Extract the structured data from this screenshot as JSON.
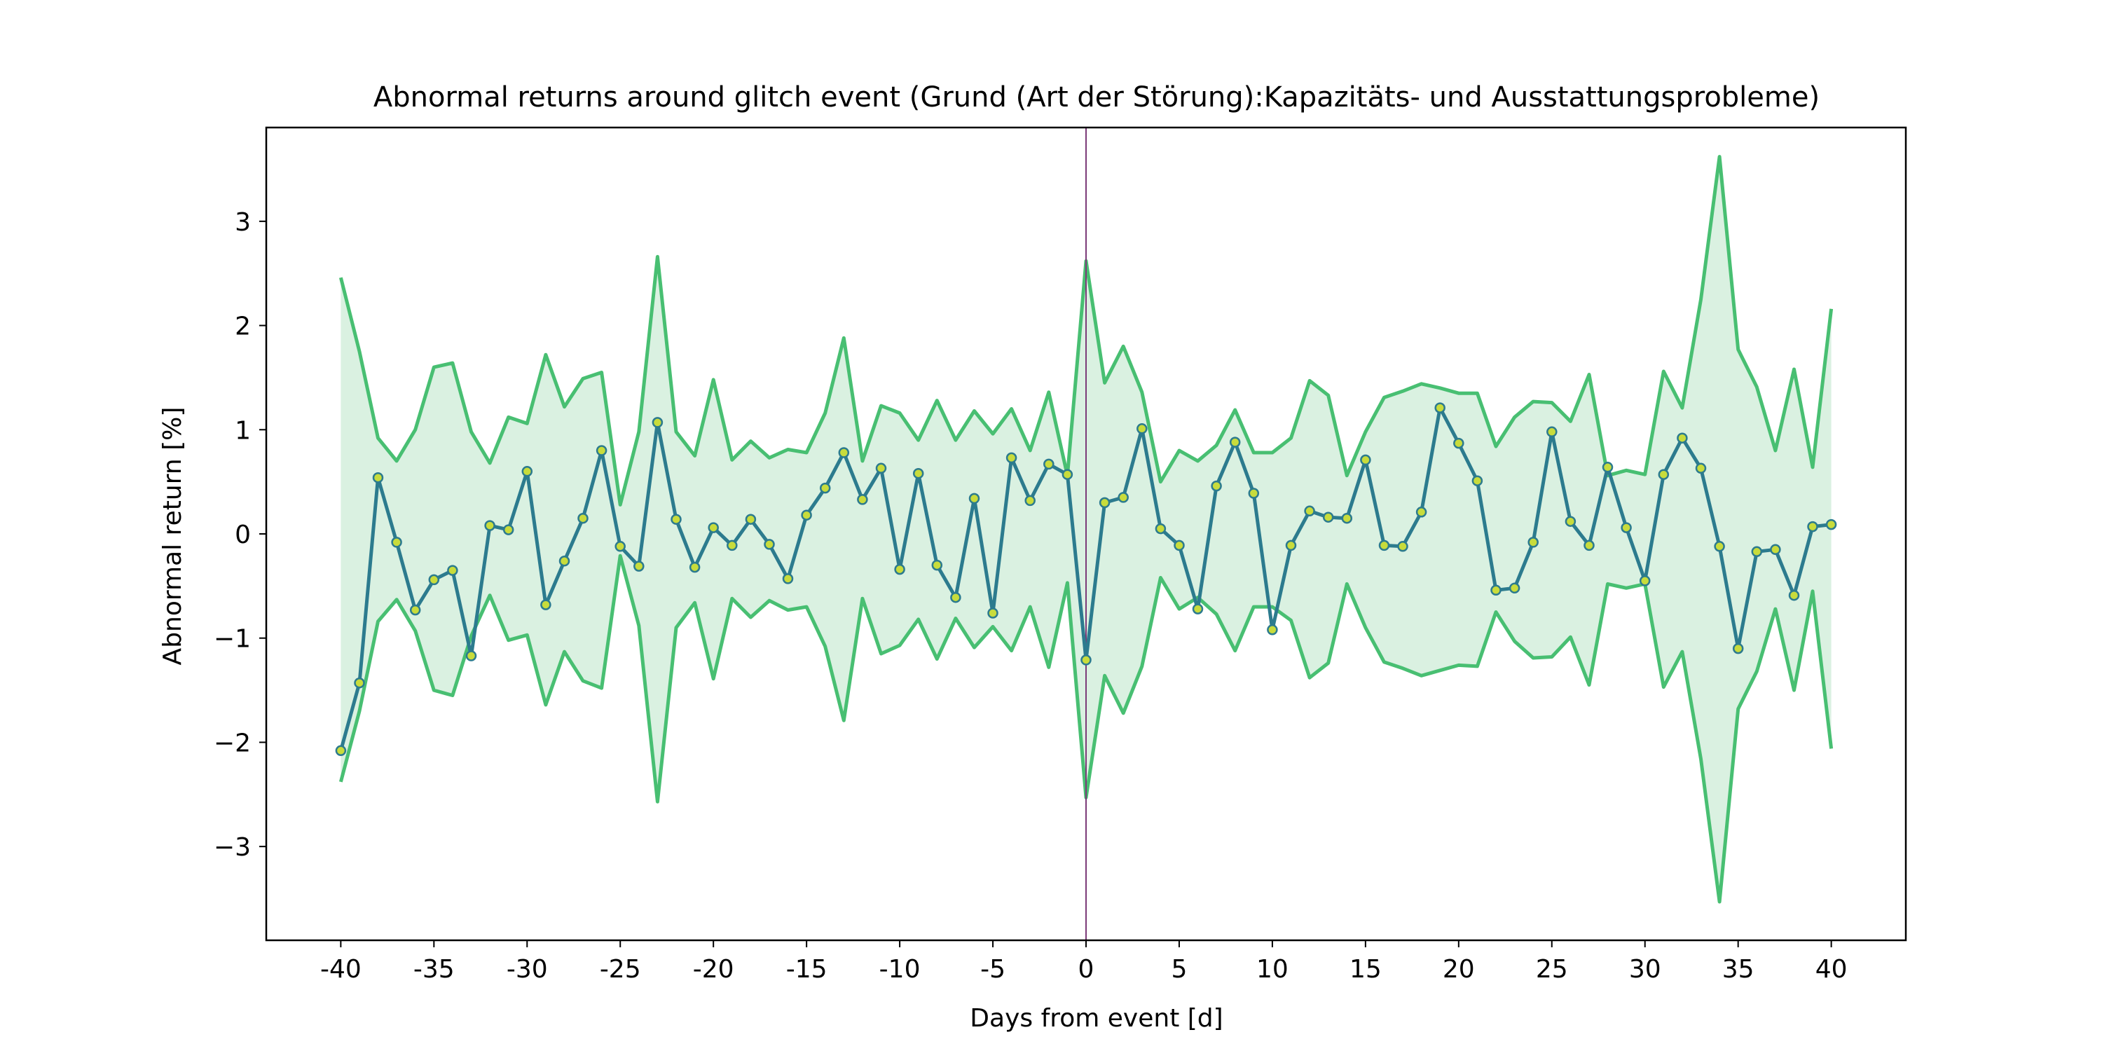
{
  "chart_data": {
    "type": "line",
    "title": "Abnormal returns around glitch event (Grund (Art der Störung):Kapazitäts- und Ausstattungsprobleme)",
    "xlabel": "Days from event [d]",
    "ylabel": "Abnormal return [%]",
    "xlim": [
      -44,
      44
    ],
    "ylim": [
      -3.9,
      3.9
    ],
    "x_ticks": [
      -40,
      -35,
      -30,
      -25,
      -20,
      -15,
      -10,
      -5,
      0,
      5,
      10,
      15,
      20,
      25,
      30,
      35,
      40
    ],
    "x_tick_labels": [
      "-40",
      "-35",
      "-30",
      "-25",
      "-20",
      "-15",
      "-10",
      "-5",
      "0",
      "5",
      "10",
      "15",
      "20",
      "25",
      "30",
      "35",
      "40"
    ],
    "y_ticks": [
      -3,
      -2,
      -1,
      0,
      1,
      2,
      3
    ],
    "y_tick_labels": [
      "−3",
      "−2",
      "−1",
      "0",
      "1",
      "2",
      "3"
    ],
    "event_line_x": 0,
    "grid": false,
    "legend": "none",
    "x": [
      -40,
      -39,
      -38,
      -37,
      -36,
      -35,
      -34,
      -33,
      -32,
      -31,
      -30,
      -29,
      -28,
      -27,
      -26,
      -25,
      -24,
      -23,
      -22,
      -21,
      -20,
      -19,
      -18,
      -17,
      -16,
      -15,
      -14,
      -13,
      -12,
      -11,
      -10,
      -9,
      -8,
      -7,
      -6,
      -5,
      -4,
      -3,
      -2,
      -1,
      0,
      1,
      2,
      3,
      4,
      5,
      6,
      7,
      8,
      9,
      10,
      11,
      12,
      13,
      14,
      15,
      16,
      17,
      18,
      19,
      20,
      21,
      22,
      23,
      24,
      25,
      26,
      27,
      28,
      29,
      30,
      31,
      32,
      33,
      34,
      35,
      36,
      37,
      38,
      39,
      40
    ],
    "series": [
      {
        "role": "abnormal-return",
        "values": [
          -2.08,
          -1.43,
          0.54,
          -0.08,
          -0.73,
          -0.44,
          -0.35,
          -1.17,
          0.08,
          0.04,
          0.6,
          -0.68,
          -0.26,
          0.15,
          0.8,
          -0.12,
          -0.31,
          1.07,
          0.14,
          -0.32,
          0.06,
          -0.11,
          0.14,
          -0.1,
          -0.43,
          0.18,
          0.44,
          0.78,
          0.33,
          0.63,
          -0.34,
          0.58,
          -0.3,
          -0.61,
          0.34,
          -0.76,
          0.73,
          0.32,
          0.67,
          0.57,
          -1.21,
          0.3,
          0.35,
          1.01,
          0.05,
          -0.11,
          -0.72,
          0.46,
          0.88,
          0.39,
          -0.92,
          -0.11,
          0.22,
          0.16,
          0.15,
          0.71,
          -0.11,
          -0.12,
          0.21,
          1.21,
          0.87,
          0.51,
          -0.54,
          -0.52,
          -0.08,
          0.98,
          0.12,
          -0.11,
          0.64,
          0.06,
          -0.45,
          0.57,
          0.92,
          0.63,
          -0.12,
          -1.1,
          -0.17,
          -0.15,
          -0.59,
          0.07,
          0.09
        ]
      },
      {
        "role": "upper-bound",
        "values": [
          2.46,
          1.75,
          0.92,
          0.7,
          1.0,
          1.6,
          1.64,
          0.98,
          0.68,
          1.12,
          1.06,
          1.72,
          1.22,
          1.49,
          1.55,
          0.28,
          0.98,
          2.66,
          0.98,
          0.75,
          1.48,
          0.71,
          0.89,
          0.73,
          0.81,
          0.78,
          1.16,
          1.88,
          0.7,
          1.23,
          1.16,
          0.9,
          1.28,
          0.9,
          1.18,
          0.96,
          1.2,
          0.8,
          1.36,
          0.56,
          2.62,
          1.45,
          1.8,
          1.36,
          0.5,
          0.8,
          0.7,
          0.85,
          1.19,
          0.78,
          0.78,
          0.92,
          1.47,
          1.33,
          0.56,
          0.98,
          1.31,
          1.37,
          1.44,
          1.4,
          1.35,
          1.35,
          0.84,
          1.12,
          1.27,
          1.26,
          1.08,
          1.53,
          0.56,
          0.61,
          0.57,
          1.56,
          1.21,
          2.25,
          3.62,
          1.77,
          1.41,
          0.8,
          1.58,
          0.64,
          2.16
        ]
      },
      {
        "role": "lower-bound",
        "values": [
          -2.38,
          -1.7,
          -0.84,
          -0.63,
          -0.93,
          -1.5,
          -1.55,
          -0.98,
          -0.59,
          -1.02,
          -0.97,
          -1.64,
          -1.13,
          -1.41,
          -1.48,
          -0.21,
          -0.88,
          -2.57,
          -0.9,
          -0.66,
          -1.39,
          -0.62,
          -0.8,
          -0.64,
          -0.73,
          -0.7,
          -1.08,
          -1.79,
          -0.62,
          -1.15,
          -1.07,
          -0.82,
          -1.2,
          -0.81,
          -1.09,
          -0.89,
          -1.12,
          -0.7,
          -1.28,
          -0.47,
          -2.53,
          -1.36,
          -1.72,
          -1.27,
          -0.42,
          -0.72,
          -0.61,
          -0.77,
          -1.12,
          -0.7,
          -0.7,
          -0.83,
          -1.38,
          -1.24,
          -0.48,
          -0.9,
          -1.23,
          -1.29,
          -1.36,
          -1.31,
          -1.26,
          -1.27,
          -0.75,
          -1.03,
          -1.19,
          -1.18,
          -0.99,
          -1.45,
          -0.48,
          -0.52,
          -0.48,
          -1.47,
          -1.13,
          -2.16,
          -3.53,
          -1.68,
          -1.32,
          -0.72,
          -1.5,
          -0.55,
          -2.06
        ]
      }
    ],
    "colors": {
      "mean_line": "#2c7b8e",
      "marker_fill": "#c8dc3c",
      "band_line": "#48bf72",
      "band_fill": "#daf1e1",
      "event_line": "#7b3a78",
      "axes": "#000000"
    }
  }
}
